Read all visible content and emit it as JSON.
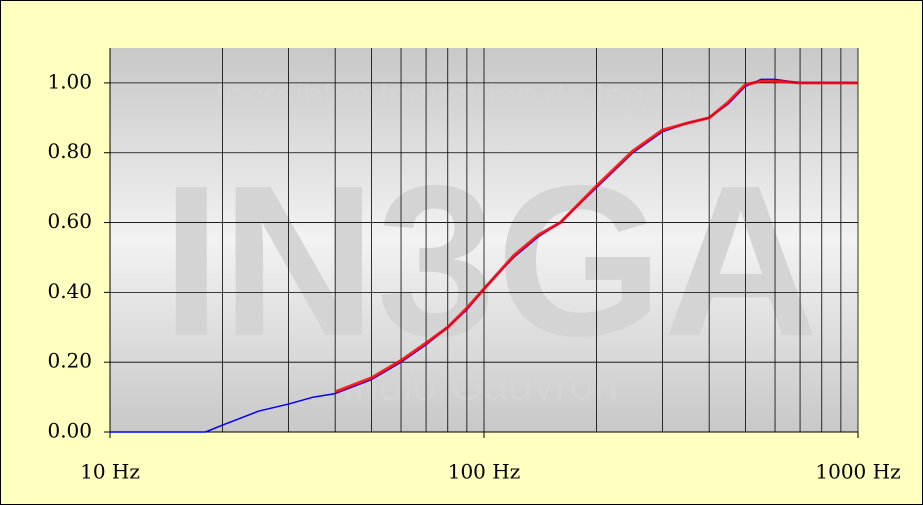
{
  "chart_data": {
    "type": "line",
    "watermark": [
      "Increibles Industrias de Ingenieria",
      "IN3GA",
      "Indio Gauvron"
    ],
    "x": [
      10,
      15,
      18,
      20,
      25,
      30,
      35,
      40,
      50,
      60,
      70,
      80,
      90,
      100,
      120,
      140,
      160,
      200,
      250,
      300,
      350,
      400,
      450,
      500,
      550,
      600,
      700,
      1000
    ],
    "series": [
      {
        "color": "#0000ff",
        "values": [
          0,
          0,
          0,
          0.02,
          0.06,
          0.08,
          0.1,
          0.11,
          0.15,
          0.2,
          0.25,
          0.3,
          0.35,
          0.41,
          0.5,
          0.56,
          0.6,
          0.7,
          0.8,
          0.86,
          0.885,
          0.9,
          0.94,
          0.99,
          1.01,
          1.01,
          1.0,
          1.0
        ]
      },
      {
        "color": "#ff0000",
        "values": [
          null,
          null,
          null,
          null,
          null,
          null,
          null,
          0.115,
          0.155,
          0.205,
          0.255,
          0.3,
          0.355,
          0.41,
          0.505,
          0.565,
          0.6,
          0.705,
          0.805,
          0.865,
          0.885,
          0.9,
          0.945,
          0.995,
          1.005,
          1.005,
          1.0,
          1.0
        ]
      }
    ],
    "xscale": "log",
    "xlim": [
      10,
      1000
    ],
    "xticks": [
      {
        "value": 10,
        "label": "10 Hz"
      },
      {
        "value": 100,
        "label": "100 Hz"
      },
      {
        "value": 1000,
        "label": "1000 Hz"
      }
    ],
    "xminorticks": [
      20,
      30,
      40,
      50,
      60,
      70,
      80,
      90,
      200,
      300,
      400,
      500,
      600,
      700,
      800,
      900
    ],
    "ylim": [
      0,
      1.1
    ],
    "yticks": [
      {
        "value": 0,
        "label": "0.00"
      },
      {
        "value": 0.2,
        "label": "0.20"
      },
      {
        "value": 0.4,
        "label": "0.40"
      },
      {
        "value": 0.6,
        "label": "0.60"
      },
      {
        "value": 0.8,
        "label": "0.80"
      },
      {
        "value": 1.0,
        "label": "1.00"
      }
    ],
    "grid": true
  }
}
